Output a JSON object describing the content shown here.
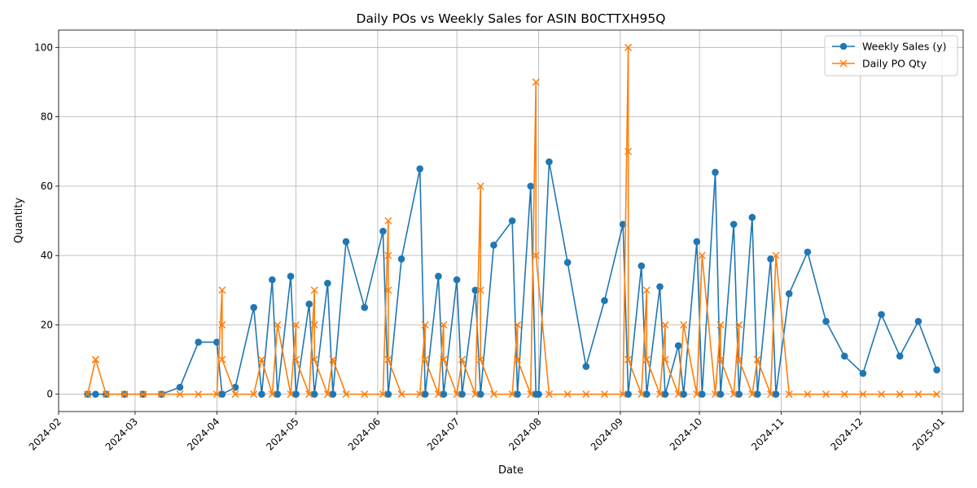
{
  "chart_data": {
    "type": "line",
    "title": "Daily POs vs Weekly Sales for ASIN B0CTTXH95Q",
    "xlabel": "Date",
    "ylabel": "Quantity",
    "xlim": [
      "2024-02-01",
      "2025-01-09"
    ],
    "ylim": [
      -5,
      105
    ],
    "yticks": [
      0,
      20,
      40,
      60,
      80,
      100
    ],
    "xticks": [
      "2024-02",
      "2024-03",
      "2024-04",
      "2024-05",
      "2024-06",
      "2024-07",
      "2024-08",
      "2024-09",
      "2024-10",
      "2024-11",
      "2024-12",
      "2025-01"
    ],
    "grid": true,
    "legend_position": "top-right",
    "series": [
      {
        "name": "Weekly Sales (y)",
        "color": "#1f77b4",
        "marker": "circle",
        "points": [
          [
            "2024-02-12",
            0
          ],
          [
            "2024-02-15",
            0
          ],
          [
            "2024-02-19",
            0
          ],
          [
            "2024-02-26",
            0
          ],
          [
            "2024-03-04",
            0
          ],
          [
            "2024-03-11",
            0
          ],
          [
            "2024-03-18",
            2
          ],
          [
            "2024-03-25",
            15
          ],
          [
            "2024-04-01",
            15
          ],
          [
            "2024-04-03",
            0
          ],
          [
            "2024-04-08",
            2
          ],
          [
            "2024-04-15",
            25
          ],
          [
            "2024-04-18",
            0
          ],
          [
            "2024-04-22",
            33
          ],
          [
            "2024-04-24",
            0
          ],
          [
            "2024-04-29",
            34
          ],
          [
            "2024-05-01",
            0
          ],
          [
            "2024-05-06",
            26
          ],
          [
            "2024-05-08",
            0
          ],
          [
            "2024-05-13",
            32
          ],
          [
            "2024-05-15",
            0
          ],
          [
            "2024-05-20",
            44
          ],
          [
            "2024-05-27",
            25
          ],
          [
            "2024-06-03",
            47
          ],
          [
            "2024-06-05",
            0
          ],
          [
            "2024-06-10",
            39
          ],
          [
            "2024-06-17",
            65
          ],
          [
            "2024-06-19",
            0
          ],
          [
            "2024-06-24",
            34
          ],
          [
            "2024-06-26",
            0
          ],
          [
            "2024-07-01",
            33
          ],
          [
            "2024-07-03",
            0
          ],
          [
            "2024-07-08",
            30
          ],
          [
            "2024-07-10",
            0
          ],
          [
            "2024-07-15",
            43
          ],
          [
            "2024-07-22",
            50
          ],
          [
            "2024-07-24",
            0
          ],
          [
            "2024-07-29",
            60
          ],
          [
            "2024-07-31",
            0
          ],
          [
            "2024-08-01",
            0
          ],
          [
            "2024-08-05",
            67
          ],
          [
            "2024-08-12",
            38
          ],
          [
            "2024-08-19",
            8
          ],
          [
            "2024-08-26",
            27
          ],
          [
            "2024-09-02",
            49
          ],
          [
            "2024-09-04",
            0
          ],
          [
            "2024-09-09",
            37
          ],
          [
            "2024-09-11",
            0
          ],
          [
            "2024-09-16",
            31
          ],
          [
            "2024-09-18",
            0
          ],
          [
            "2024-09-23",
            14
          ],
          [
            "2024-09-25",
            0
          ],
          [
            "2024-09-30",
            44
          ],
          [
            "2024-10-02",
            0
          ],
          [
            "2024-10-07",
            64
          ],
          [
            "2024-10-09",
            0
          ],
          [
            "2024-10-14",
            49
          ],
          [
            "2024-10-16",
            0
          ],
          [
            "2024-10-21",
            51
          ],
          [
            "2024-10-23",
            0
          ],
          [
            "2024-10-28",
            39
          ],
          [
            "2024-10-30",
            0
          ],
          [
            "2024-11-04",
            29
          ],
          [
            "2024-11-11",
            41
          ],
          [
            "2024-11-18",
            21
          ],
          [
            "2024-11-25",
            11
          ],
          [
            "2024-12-02",
            6
          ],
          [
            "2024-12-09",
            23
          ],
          [
            "2024-12-16",
            11
          ],
          [
            "2024-12-23",
            21
          ],
          [
            "2024-12-30",
            7
          ]
        ]
      },
      {
        "name": "Daily PO Qty",
        "color": "#ff7f0e",
        "marker": "x",
        "points": [
          [
            "2024-02-12",
            0
          ],
          [
            "2024-02-15",
            10
          ],
          [
            "2024-02-15",
            10
          ],
          [
            "2024-02-19",
            0
          ],
          [
            "2024-02-26",
            0
          ],
          [
            "2024-03-04",
            0
          ],
          [
            "2024-03-11",
            0
          ],
          [
            "2024-03-18",
            0
          ],
          [
            "2024-03-25",
            0
          ],
          [
            "2024-04-01",
            0
          ],
          [
            "2024-04-03",
            30
          ],
          [
            "2024-04-03",
            20
          ],
          [
            "2024-04-03",
            10
          ],
          [
            "2024-04-08",
            0
          ],
          [
            "2024-04-15",
            0
          ],
          [
            "2024-04-18",
            10
          ],
          [
            "2024-04-22",
            0
          ],
          [
            "2024-04-24",
            20
          ],
          [
            "2024-04-29",
            0
          ],
          [
            "2024-05-01",
            20
          ],
          [
            "2024-05-01",
            10
          ],
          [
            "2024-05-06",
            0
          ],
          [
            "2024-05-08",
            30
          ],
          [
            "2024-05-08",
            20
          ],
          [
            "2024-05-08",
            10
          ],
          [
            "2024-05-13",
            0
          ],
          [
            "2024-05-15",
            10
          ],
          [
            "2024-05-20",
            0
          ],
          [
            "2024-05-27",
            0
          ],
          [
            "2024-06-03",
            0
          ],
          [
            "2024-06-05",
            50
          ],
          [
            "2024-06-05",
            40
          ],
          [
            "2024-06-05",
            30
          ],
          [
            "2024-06-05",
            10
          ],
          [
            "2024-06-10",
            0
          ],
          [
            "2024-06-17",
            0
          ],
          [
            "2024-06-19",
            20
          ],
          [
            "2024-06-19",
            10
          ],
          [
            "2024-06-24",
            0
          ],
          [
            "2024-06-26",
            20
          ],
          [
            "2024-06-26",
            10
          ],
          [
            "2024-07-01",
            0
          ],
          [
            "2024-07-03",
            10
          ],
          [
            "2024-07-08",
            0
          ],
          [
            "2024-07-10",
            60
          ],
          [
            "2024-07-10",
            30
          ],
          [
            "2024-07-10",
            10
          ],
          [
            "2024-07-15",
            0
          ],
          [
            "2024-07-22",
            0
          ],
          [
            "2024-07-24",
            20
          ],
          [
            "2024-07-24",
            10
          ],
          [
            "2024-07-29",
            0
          ],
          [
            "2024-07-31",
            90
          ],
          [
            "2024-07-31",
            40
          ],
          [
            "2024-08-05",
            0
          ],
          [
            "2024-08-12",
            0
          ],
          [
            "2024-08-19",
            0
          ],
          [
            "2024-08-26",
            0
          ],
          [
            "2024-09-02",
            0
          ],
          [
            "2024-09-04",
            100
          ],
          [
            "2024-09-04",
            70
          ],
          [
            "2024-09-04",
            10
          ],
          [
            "2024-09-09",
            0
          ],
          [
            "2024-09-11",
            30
          ],
          [
            "2024-09-11",
            10
          ],
          [
            "2024-09-16",
            0
          ],
          [
            "2024-09-18",
            20
          ],
          [
            "2024-09-18",
            10
          ],
          [
            "2024-09-23",
            0
          ],
          [
            "2024-09-25",
            20
          ],
          [
            "2024-09-30",
            0
          ],
          [
            "2024-10-02",
            40
          ],
          [
            "2024-10-07",
            0
          ],
          [
            "2024-10-09",
            20
          ],
          [
            "2024-10-09",
            10
          ],
          [
            "2024-10-14",
            0
          ],
          [
            "2024-10-16",
            20
          ],
          [
            "2024-10-16",
            10
          ],
          [
            "2024-10-21",
            0
          ],
          [
            "2024-10-23",
            10
          ],
          [
            "2024-10-28",
            0
          ],
          [
            "2024-10-30",
            40
          ],
          [
            "2024-11-04",
            0
          ],
          [
            "2024-11-11",
            0
          ],
          [
            "2024-11-18",
            0
          ],
          [
            "2024-11-25",
            0
          ],
          [
            "2024-12-02",
            0
          ],
          [
            "2024-12-09",
            0
          ],
          [
            "2024-12-16",
            0
          ],
          [
            "2024-12-23",
            0
          ],
          [
            "2024-12-30",
            0
          ]
        ]
      }
    ]
  }
}
